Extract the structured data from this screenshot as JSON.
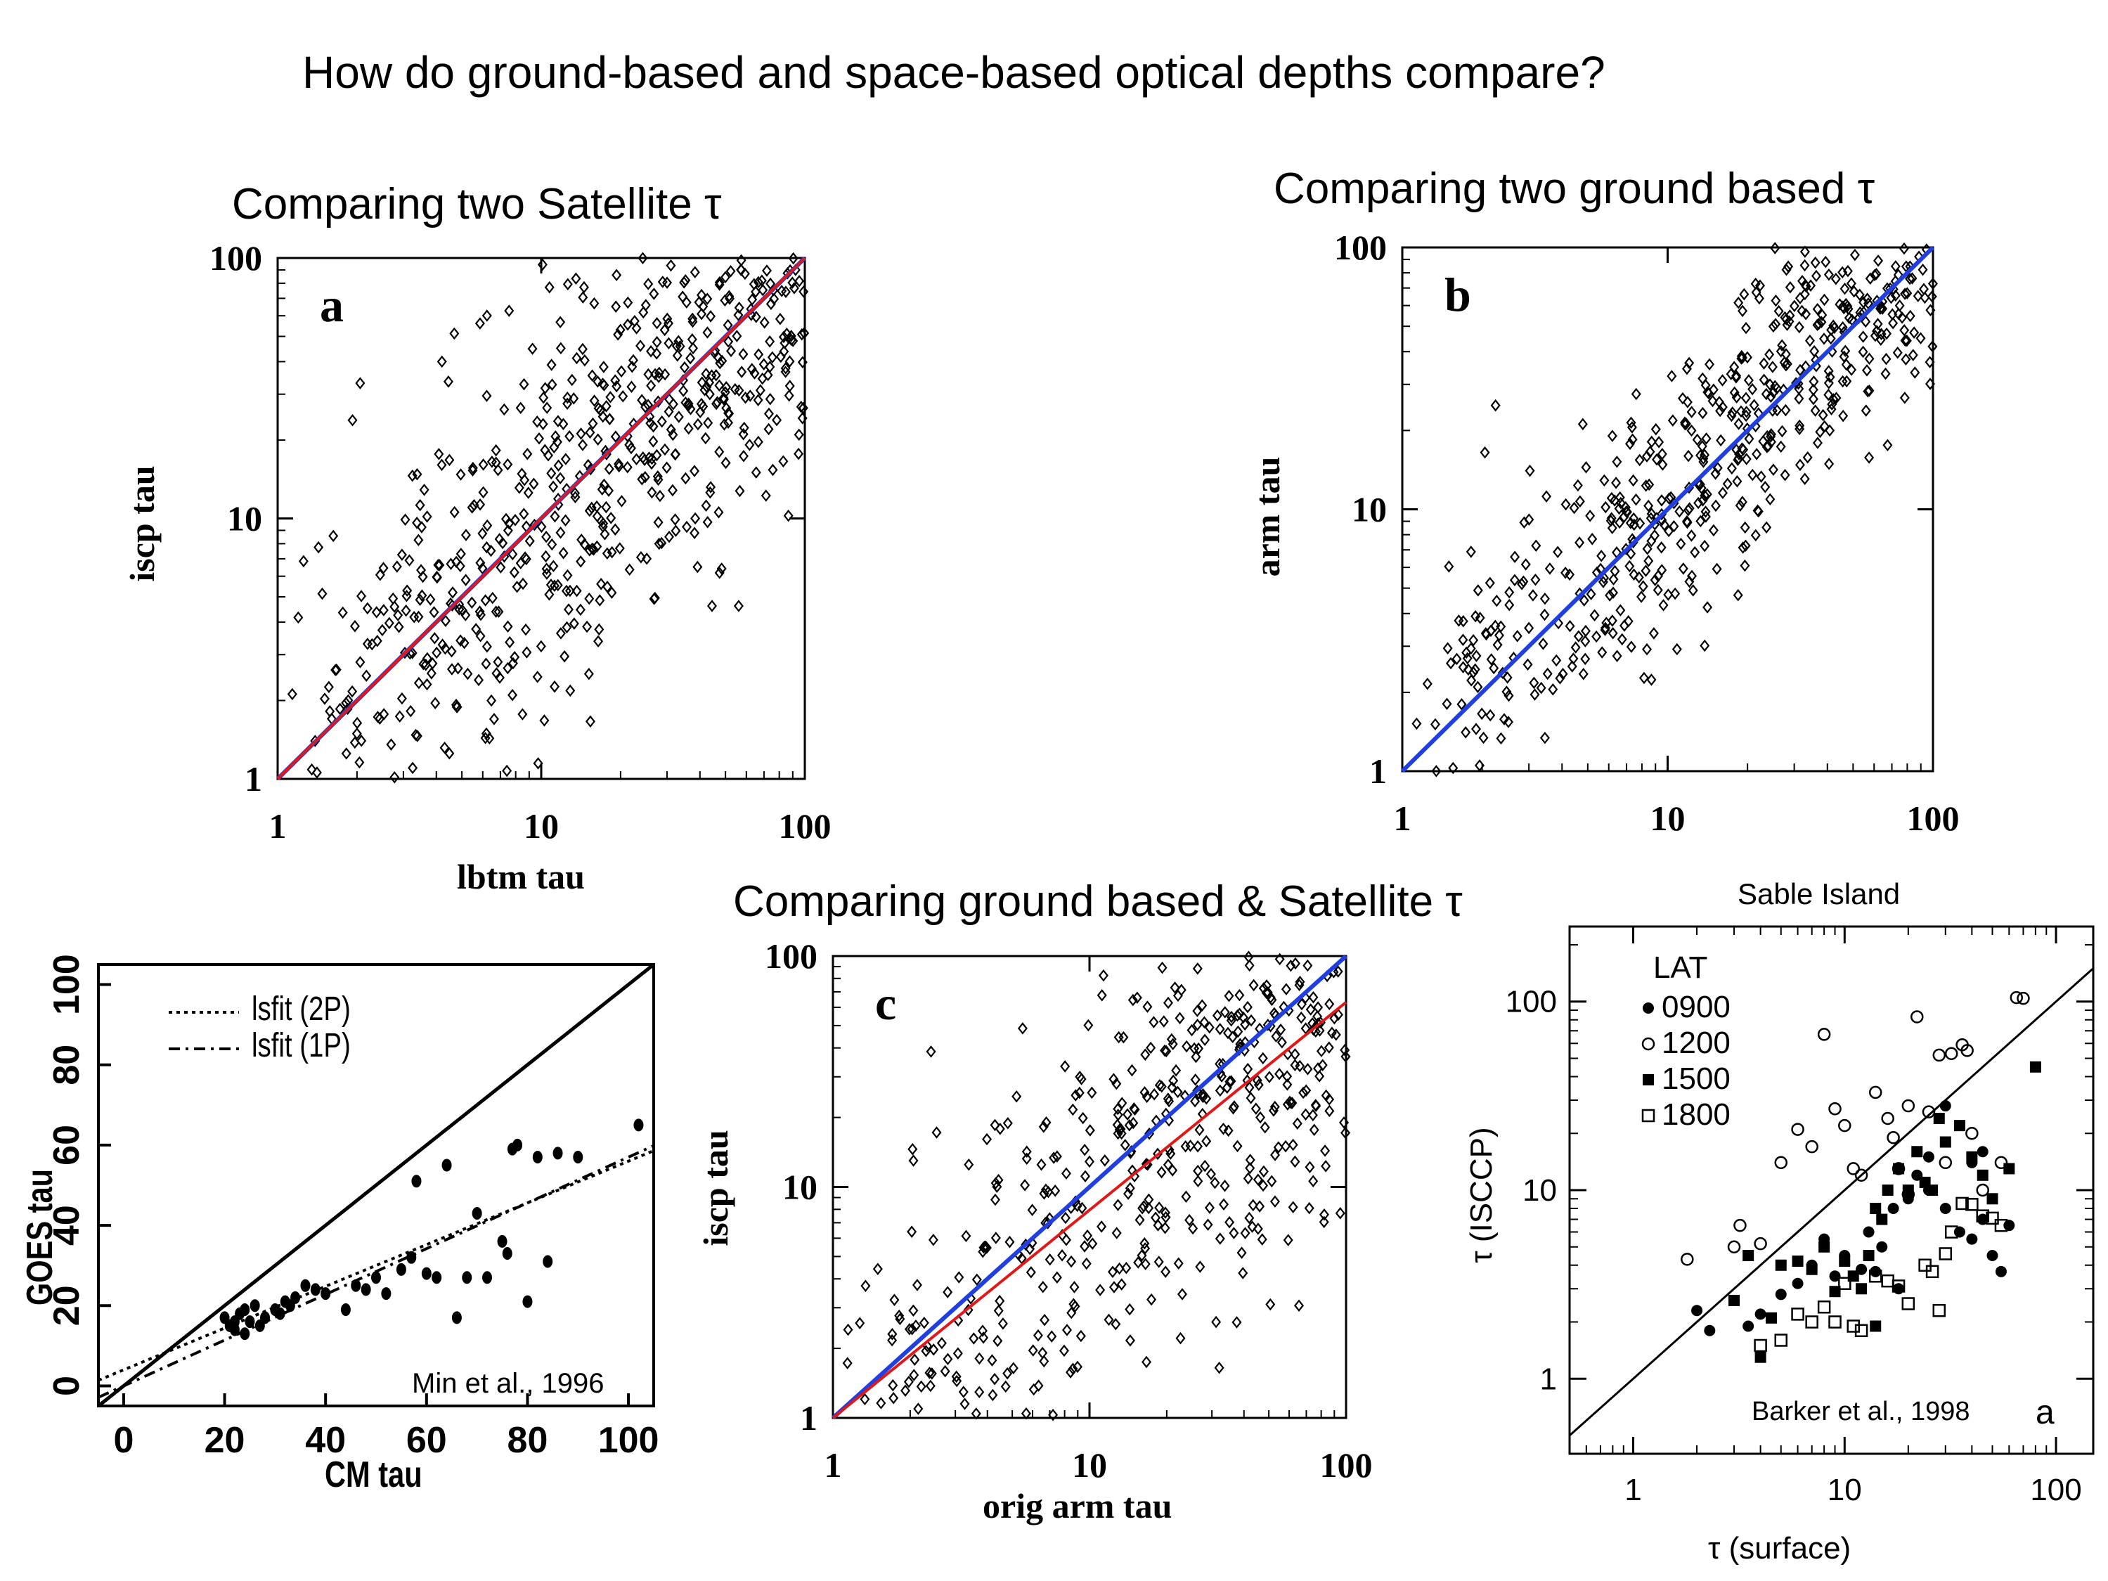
{
  "page": {
    "title": "How do ground-based and space-based optical depths compare?",
    "section_a": "Comparing two Satellite τ",
    "section_b": "Comparing two ground based τ",
    "section_c": "Comparing ground based & Satellite τ"
  },
  "colors": {
    "blue_line": "#1f3fe0",
    "red_line": "#e01818",
    "marker": "#000000"
  },
  "chart_data": [
    {
      "id": "a",
      "type": "scatter",
      "panel_label": "a",
      "xlabel": "lbtm tau",
      "ylabel": "iscp tau",
      "xscale": "log",
      "yscale": "log",
      "xlim": [
        1,
        100
      ],
      "ylim": [
        1,
        100
      ],
      "ticks": [
        "1",
        "10",
        "100"
      ],
      "marker": "open-diamond",
      "lines": [
        {
          "color": "blue",
          "slope": 1.0
        },
        {
          "color": "red",
          "slope": 1.0
        }
      ]
    },
    {
      "id": "b",
      "type": "scatter",
      "panel_label": "b",
      "xlabel": "",
      "ylabel": "arm tau",
      "xscale": "log",
      "yscale": "log",
      "xlim": [
        1,
        100
      ],
      "ylim": [
        1,
        100
      ],
      "ticks": [
        "1",
        "10",
        "100"
      ],
      "marker": "open-diamond",
      "lines": [
        {
          "color": "blue",
          "slope": 1.0
        }
      ]
    },
    {
      "id": "c",
      "type": "scatter",
      "panel_label": "c",
      "xlabel": "orig arm tau",
      "ylabel": "iscp tau",
      "xscale": "log",
      "yscale": "log",
      "xlim": [
        1,
        100
      ],
      "ylim": [
        1,
        100
      ],
      "ticks": [
        "1",
        "10",
        "100"
      ],
      "marker": "open-diamond",
      "lines": [
        {
          "color": "blue",
          "slope": 1.0
        },
        {
          "color": "red",
          "slope": 0.9
        }
      ]
    },
    {
      "id": "goes",
      "type": "scatter",
      "xlabel": "CM tau",
      "ylabel": "GOES tau",
      "xlim": [
        -5,
        105
      ],
      "ylim": [
        -5,
        105
      ],
      "xticks": [
        "0",
        "20",
        "40",
        "60",
        "80",
        "100"
      ],
      "yticks": [
        "0",
        "20",
        "40",
        "60",
        "80",
        "100"
      ],
      "legend": [
        "lsfit (2P)",
        "lsfit (1P)"
      ],
      "citation": "Min et al., 1996",
      "points": [
        [
          20,
          17
        ],
        [
          21,
          15
        ],
        [
          22,
          14
        ],
        [
          23,
          18
        ],
        [
          24,
          13
        ],
        [
          25,
          16
        ],
        [
          26,
          20
        ],
        [
          28,
          17
        ],
        [
          30,
          19
        ],
        [
          32,
          21
        ],
        [
          34,
          22
        ],
        [
          36,
          25
        ],
        [
          38,
          24
        ],
        [
          40,
          23
        ],
        [
          44,
          19
        ],
        [
          46,
          25
        ],
        [
          48,
          24
        ],
        [
          50,
          27
        ],
        [
          52,
          23
        ],
        [
          55,
          29
        ],
        [
          57,
          32
        ],
        [
          58,
          51
        ],
        [
          60,
          28
        ],
        [
          62,
          27
        ],
        [
          64,
          55
        ],
        [
          66,
          17
        ],
        [
          68,
          27
        ],
        [
          70,
          43
        ],
        [
          72,
          27
        ],
        [
          75,
          36
        ],
        [
          76,
          33
        ],
        [
          77,
          59
        ],
        [
          78,
          60
        ],
        [
          80,
          21
        ],
        [
          82,
          57
        ],
        [
          84,
          31
        ],
        [
          86,
          58
        ],
        [
          90,
          57
        ],
        [
          102,
          65
        ],
        [
          22,
          16
        ],
        [
          24,
          19
        ],
        [
          27,
          15
        ],
        [
          31,
          18
        ],
        [
          33,
          20
        ]
      ],
      "lines": [
        {
          "name": "1:1",
          "style": "solid",
          "intercept": 0,
          "slope": 1.0
        },
        {
          "name": "lsfit (2P)",
          "style": "dotted",
          "intercept": 4,
          "slope": 0.52
        },
        {
          "name": "lsfit (1P)",
          "style": "dashed",
          "intercept": 0,
          "slope": 0.57
        }
      ]
    },
    {
      "id": "sable",
      "type": "scatter",
      "title": "Sable Island",
      "xlabel": "τ (surface)",
      "ylabel": "τ (ISCCP)",
      "xscale": "log",
      "yscale": "log",
      "xlim": [
        0.5,
        150
      ],
      "ylim": [
        0.4,
        250
      ],
      "xticks": [
        "1",
        "10",
        "100"
      ],
      "yticks": [
        "1",
        "10",
        "100"
      ],
      "legend_title": "LAT",
      "legend": [
        "0900",
        "1200",
        "1500",
        "1800"
      ],
      "citation": "Barker et al., 1998",
      "panel_label": "a",
      "series": [
        {
          "name": "0900",
          "marker": "filled-circle",
          "points": [
            [
              2,
              2.3
            ],
            [
              2.3,
              1.8
            ],
            [
              3.5,
              1.9
            ],
            [
              4,
              2.2
            ],
            [
              5,
              2.8
            ],
            [
              6,
              3.2
            ],
            [
              7,
              4
            ],
            [
              8,
              5.5
            ],
            [
              9,
              3.5
            ],
            [
              10,
              4.5
            ],
            [
              12,
              3.8
            ],
            [
              13,
              6
            ],
            [
              15,
              5
            ],
            [
              17,
              8
            ],
            [
              20,
              9
            ],
            [
              22,
              12
            ],
            [
              25,
              10
            ],
            [
              30,
              8
            ],
            [
              35,
              6
            ],
            [
              40,
              5.5
            ],
            [
              45,
              7
            ],
            [
              50,
              4.5
            ],
            [
              55,
              3.7
            ],
            [
              60,
              6.5
            ],
            [
              45,
              16
            ],
            [
              40,
              14
            ],
            [
              30,
              28
            ],
            [
              25,
              15
            ],
            [
              18,
              3
            ],
            [
              14,
              3.7
            ]
          ]
        },
        {
          "name": "1200",
          "marker": "open-circle",
          "points": [
            [
              1.8,
              4.3
            ],
            [
              3,
              5
            ],
            [
              3.2,
              6.5
            ],
            [
              4,
              5.2
            ],
            [
              5,
              14
            ],
            [
              6,
              21
            ],
            [
              7,
              17
            ],
            [
              8,
              67
            ],
            [
              9,
              27
            ],
            [
              10,
              22
            ],
            [
              11,
              13
            ],
            [
              12,
              12
            ],
            [
              14,
              33
            ],
            [
              16,
              24
            ],
            [
              18,
              13
            ],
            [
              20,
              28
            ],
            [
              22,
              83
            ],
            [
              25,
              26
            ],
            [
              28,
              52
            ],
            [
              32,
              53
            ],
            [
              36,
              59
            ],
            [
              38,
              55
            ],
            [
              40,
              20
            ],
            [
              55,
              14
            ],
            [
              65,
              105
            ],
            [
              70,
              104
            ],
            [
              30,
              14
            ],
            [
              20,
              9.5
            ],
            [
              45,
              10
            ],
            [
              17,
              19
            ]
          ]
        },
        {
          "name": "1500",
          "marker": "filled-square",
          "points": [
            [
              3,
              2.6
            ],
            [
              3.5,
              4.5
            ],
            [
              4,
              1.3
            ],
            [
              4.5,
              2.1
            ],
            [
              5,
              4
            ],
            [
              6,
              4.2
            ],
            [
              7,
              3.8
            ],
            [
              8,
              5
            ],
            [
              9,
              2.9
            ],
            [
              10,
              4.2
            ],
            [
              11,
              3.5
            ],
            [
              12,
              3
            ],
            [
              13,
              4.5
            ],
            [
              14,
              8
            ],
            [
              15,
              7
            ],
            [
              16,
              10
            ],
            [
              18,
              13
            ],
            [
              20,
              10
            ],
            [
              22,
              16
            ],
            [
              24,
              11
            ],
            [
              26,
              10
            ],
            [
              28,
              24
            ],
            [
              30,
              18
            ],
            [
              35,
              22
            ],
            [
              40,
              15
            ],
            [
              45,
              12
            ],
            [
              50,
              9
            ],
            [
              80,
              45
            ],
            [
              60,
              13
            ],
            [
              14,
              1.9
            ]
          ]
        },
        {
          "name": "1800",
          "marker": "open-square",
          "points": [
            [
              4,
              1.5
            ],
            [
              5,
              1.6
            ],
            [
              6,
              2.2
            ],
            [
              7,
              2
            ],
            [
              8,
              2.4
            ],
            [
              10,
              3.2
            ],
            [
              11,
              1.9
            ],
            [
              12,
              1.8
            ],
            [
              14,
              3.5
            ],
            [
              16,
              3.3
            ],
            [
              18,
              3.1
            ],
            [
              20,
              2.5
            ],
            [
              24,
              4
            ],
            [
              28,
              2.3
            ],
            [
              30,
              4.6
            ],
            [
              32,
              6
            ],
            [
              36,
              8.5
            ],
            [
              40,
              8.4
            ],
            [
              45,
              7.3
            ],
            [
              50,
              7.1
            ],
            [
              55,
              6.5
            ],
            [
              26,
              3.7
            ],
            [
              9,
              2
            ]
          ]
        }
      ]
    }
  ]
}
